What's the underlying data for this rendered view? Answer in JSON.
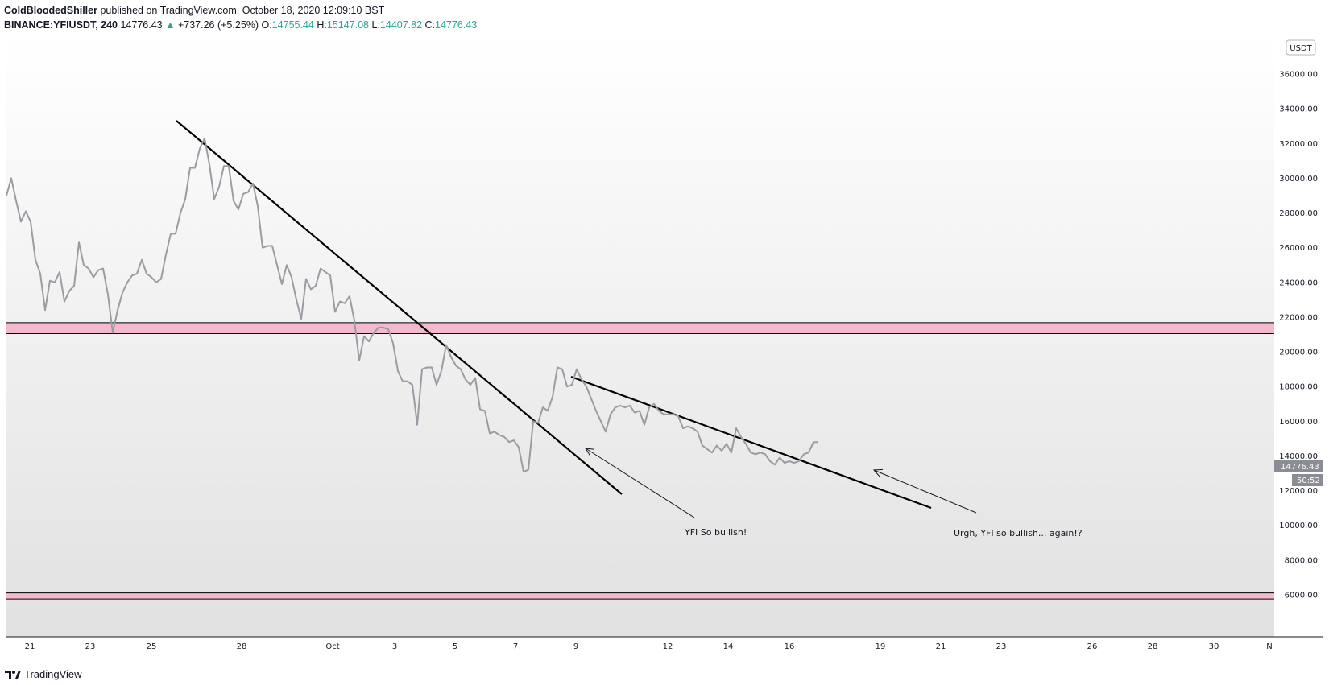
{
  "header": {
    "author": "ColdBloodedShiller",
    "published": "published on TradingView.com, October 18, 2020 12:09:10 BST",
    "symbol": "BINANCE:YFIUSDT, 240",
    "last": "14776.43",
    "change": "+737.26 (+5.25%)",
    "o_label": "O:",
    "o_value": "14755.44",
    "h_label": "H:",
    "h_value": "15147.08",
    "l_label": "L:",
    "l_value": "14407.82",
    "c_label": "C:",
    "c_value": "14776.43"
  },
  "currency_badge": "USDT",
  "price_tag": "14776.43",
  "countdown_tag": "50:52",
  "footer": {
    "brand": "TradingView"
  },
  "colors": {
    "price_line": "#9a9ca3",
    "zone": "#f4b9cf",
    "trendline": "#000000",
    "price_tag": "#8a8d94"
  },
  "annotations": [
    "YFI So bullish!",
    "Urgh, YFI so bullish... again!?"
  ],
  "chart_data": {
    "type": "line",
    "title": "",
    "xlabel": "",
    "ylabel": "",
    "x_ticks": [
      "21",
      "23",
      "25",
      "28",
      "Oct",
      "3",
      "5",
      "7",
      "9",
      "12",
      "14",
      "16",
      "19",
      "21",
      "23",
      "26",
      "28",
      "30",
      "N"
    ],
    "y_ticks": [
      6000,
      8000,
      10000,
      12000,
      14000,
      16000,
      18000,
      20000,
      22000,
      24000,
      26000,
      28000,
      30000,
      32000,
      34000,
      36000
    ],
    "ylim": [
      5500,
      38500
    ],
    "grid": false,
    "series": [
      {
        "values": [
          29000,
          30000,
          28700,
          27500,
          28100,
          27500,
          25300,
          24500,
          22400,
          24100,
          24000,
          24600,
          22900,
          23500,
          23800,
          26300,
          25000,
          24800,
          24300,
          24700,
          24800,
          23300,
          21100,
          22400,
          23400,
          24000,
          24400,
          24500,
          25300,
          24500,
          24300,
          24000,
          24200,
          25600,
          26800,
          26800,
          28000,
          28800,
          30600,
          30600,
          31700,
          32300,
          30800,
          28800,
          29500,
          30700,
          30700,
          28700,
          28200,
          29100,
          29200,
          29700,
          28400,
          26000,
          26100,
          26100,
          25000,
          23900,
          25000,
          24300,
          23000,
          21900,
          24200,
          23600,
          23800,
          24800,
          24600,
          24400,
          22300,
          22900,
          22800,
          23200,
          21800,
          19500,
          20900,
          20600,
          21100,
          21400,
          21400,
          21300,
          20500,
          18900,
          18300,
          18300,
          18100,
          15800,
          19000,
          19100,
          19100,
          18100,
          18900,
          20400,
          19700,
          19200,
          19000,
          18400,
          18100,
          18500,
          16700,
          16600,
          15300,
          15400,
          15200,
          15100,
          14800,
          14900,
          14500,
          13100,
          13200,
          16000,
          15900,
          16800,
          16600,
          17400,
          19100,
          19000,
          18000,
          18100,
          19000,
          18400,
          18000,
          17300,
          16600,
          16000,
          15400,
          16400,
          16800,
          16900,
          16800,
          16900,
          16500,
          16600,
          15800,
          16800,
          17000,
          16600,
          16400,
          16400,
          16400,
          16300,
          15600,
          15700,
          15600,
          15400,
          14600,
          14400,
          14200,
          14600,
          14300,
          14700,
          14200,
          15600,
          15100,
          14700,
          14200,
          14100,
          14200,
          14100,
          13700,
          13500,
          13900,
          13600,
          13700,
          13600,
          13700,
          14100,
          14200,
          14800,
          14800
        ]
      }
    ],
    "zones": [
      {
        "from": 21050,
        "to": 21680
      },
      {
        "from": 5760,
        "to": 6110
      }
    ]
  }
}
